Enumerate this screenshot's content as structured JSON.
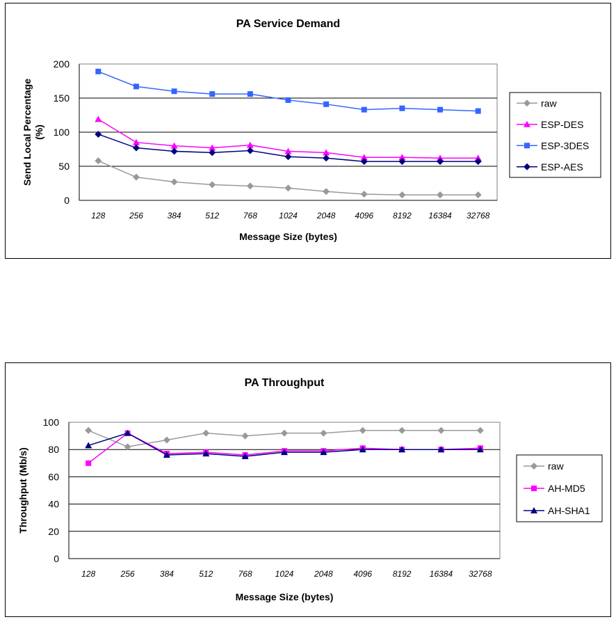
{
  "chart_data": [
    {
      "type": "line",
      "title": "PA Service Demand",
      "xlabel": "Message Size (bytes)",
      "ylabel": "Send Local Percentage (%)",
      "categories": [
        "128",
        "256",
        "384",
        "512",
        "768",
        "1024",
        "2048",
        "4096",
        "8192",
        "16384",
        "32768"
      ],
      "ylim": [
        0,
        200
      ],
      "yticks": [
        0,
        50,
        100,
        150,
        200
      ],
      "grid": "horizontal",
      "legend": "right",
      "series": [
        {
          "name": "raw",
          "color": "#999999",
          "marker": "diamond",
          "values": [
            58,
            34,
            27,
            23,
            21,
            18,
            13,
            9,
            8,
            8,
            8
          ]
        },
        {
          "name": "ESP-DES",
          "color": "#ff00ff",
          "marker": "triangle",
          "values": [
            119,
            85,
            80,
            77,
            81,
            72,
            70,
            63,
            63,
            62,
            62
          ]
        },
        {
          "name": "ESP-3DES",
          "color": "#3366ff",
          "marker": "square",
          "values": [
            189,
            167,
            160,
            156,
            156,
            147,
            141,
            133,
            135,
            133,
            131
          ]
        },
        {
          "name": "ESP-AES",
          "color": "#000080",
          "marker": "diamond",
          "values": [
            97,
            77,
            72,
            70,
            73,
            64,
            62,
            57,
            57,
            57,
            57
          ]
        }
      ]
    },
    {
      "type": "line",
      "title": "PA Throughput",
      "xlabel": "Message Size (bytes)",
      "ylabel": "Throughput (Mb/s)",
      "categories": [
        "128",
        "256",
        "384",
        "512",
        "768",
        "1024",
        "2048",
        "4096",
        "8192",
        "16384",
        "32768"
      ],
      "ylim": [
        0,
        100
      ],
      "yticks": [
        0,
        20,
        40,
        60,
        80,
        100
      ],
      "grid": "horizontal",
      "legend": "right",
      "series": [
        {
          "name": "raw",
          "color": "#999999",
          "marker": "diamond",
          "values": [
            94,
            82,
            87,
            92,
            90,
            92,
            92,
            94,
            94,
            94,
            94
          ]
        },
        {
          "name": "AH-MD5",
          "color": "#ff00ff",
          "marker": "square",
          "values": [
            70,
            92,
            77,
            78,
            76,
            79,
            79,
            81,
            80,
            80,
            81
          ]
        },
        {
          "name": "AH-SHA1",
          "color": "#000080",
          "marker": "triangle",
          "values": [
            83,
            92,
            76,
            77,
            75,
            78,
            78,
            80,
            80,
            80,
            80
          ]
        }
      ]
    }
  ]
}
